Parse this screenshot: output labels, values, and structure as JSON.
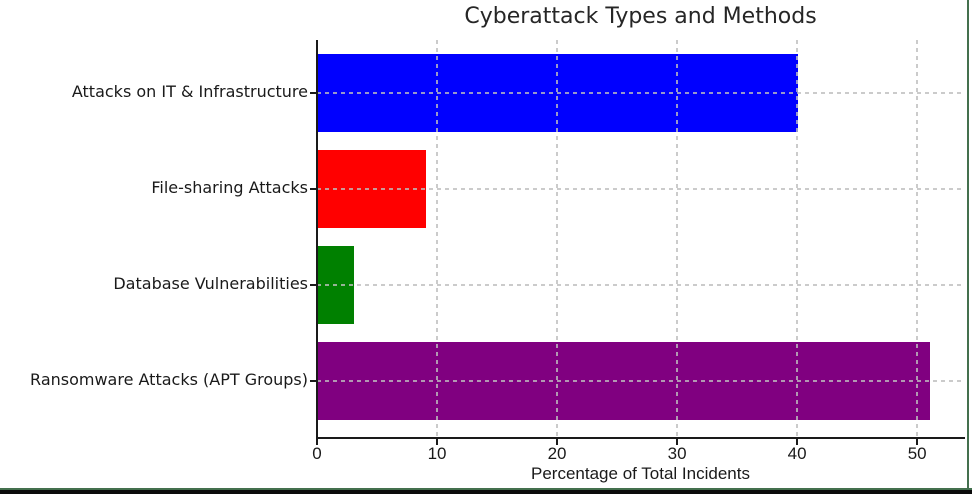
{
  "window": {
    "border_color": "#44704e",
    "bottom_edge_color": "#0b0b0b",
    "background": "#ffffff"
  },
  "chart_data": {
    "type": "bar",
    "orientation": "horizontal",
    "title": "Cyberattack Types and Methods",
    "xlabel": "Percentage of Total Incidents",
    "ylabel": "",
    "categories": [
      "Attacks on IT & Infrastructure",
      "File-sharing Attacks",
      "Database Vulnerabilities",
      "Ransomware Attacks (APT Groups)"
    ],
    "values": [
      40,
      9,
      3,
      51
    ],
    "bar_colors": [
      "#0000ff",
      "#ff0000",
      "#008000",
      "#800080"
    ],
    "xticks": [
      0,
      10,
      20,
      30,
      40,
      50
    ],
    "xlim": [
      0,
      53.9
    ],
    "grid": true,
    "grid_linestyle": "dashed",
    "grid_color": "#bebebe",
    "axis_color": "#1a1a1a",
    "text_color": "#1a1a1a",
    "legend": null
  }
}
